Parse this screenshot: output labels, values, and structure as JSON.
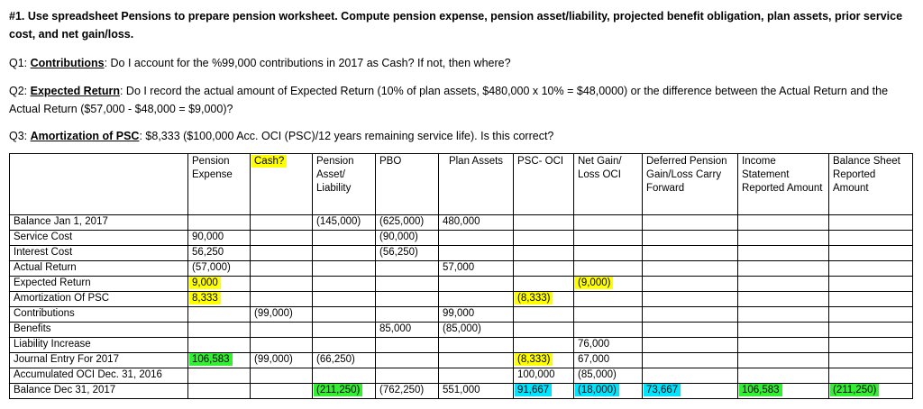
{
  "header": {
    "title": "#1. Use spreadsheet Pensions to prepare pension worksheet.  Compute pension expense, pension asset/liability, projected benefit obligation, plan assets, prior service cost, and net gain/loss."
  },
  "questions": [
    {
      "label": "Q1: ",
      "topic": "Contributions",
      "text": ": Do I account for the %99,000 contributions in 2017 as Cash?  If not, then where?"
    },
    {
      "label": "Q2: ",
      "topic": "Expected Return",
      "text": ": Do I record the actual amount of Expected Return (10% of plan assets, $480,000 x 10% = $48,0000) or the difference between the Actual Return and the Actual Return ($57,000 - $48,000 = $9,000)?"
    },
    {
      "label": "Q3: ",
      "topic": "Amortization of PSC",
      "text": ": $8,333 ($100,000 Acc. OCI (PSC)/12 years remaining service life).  Is this correct?"
    }
  ],
  "worksheet": {
    "columns": [
      "",
      "Pension Expense",
      "Cash?",
      "Pension Asset/ Liability",
      "PBO",
      "Plan Assets",
      "PSC- OCI",
      "Net Gain/ Loss OCI",
      "Deferred Pension Gain/Loss Carry Forward",
      "Income Statement Reported Amount",
      "Balance Sheet Reported Amount"
    ],
    "rows": [
      {
        "label": "Balance Jan 1, 2017",
        "cells": [
          "",
          "",
          "(145,000)",
          "(625,000)",
          "480,000",
          "",
          "",
          "",
          "",
          ""
        ]
      },
      {
        "label": "Service Cost",
        "cells": [
          "90,000",
          "",
          "",
          "(90,000)",
          "",
          "",
          "",
          "",
          "",
          ""
        ]
      },
      {
        "label": "Interest Cost",
        "cells": [
          "56,250",
          "",
          "",
          "(56,250)",
          "",
          "",
          "",
          "",
          "",
          ""
        ]
      },
      {
        "label": "Actual Return",
        "cells": [
          "(57,000)",
          "",
          "",
          "",
          "57,000",
          "",
          "",
          "",
          "",
          ""
        ]
      },
      {
        "label": "Expected Return",
        "cells": [
          "9,000",
          "",
          "",
          "",
          "",
          "",
          "(9,000)",
          "",
          "",
          ""
        ]
      },
      {
        "label": "Amortization Of PSC",
        "cells": [
          "8,333",
          "",
          "",
          "",
          "",
          "(8,333)",
          "",
          "",
          "",
          ""
        ]
      },
      {
        "label": "Contributions",
        "cells": [
          "",
          "(99,000)",
          "",
          "",
          "99,000",
          "",
          "",
          "",
          "",
          ""
        ]
      },
      {
        "label": "Benefits",
        "cells": [
          "",
          "",
          "",
          "85,000",
          "(85,000)",
          "",
          "",
          "",
          "",
          ""
        ]
      },
      {
        "label": "Liability Increase",
        "cells": [
          "",
          "",
          "",
          "",
          "",
          "",
          "76,000",
          "",
          "",
          ""
        ]
      },
      {
        "label": "Journal Entry For 2017",
        "cells": [
          "106,583",
          "(99,000)",
          "(66,250)",
          "",
          "",
          "(8,333)",
          "67,000",
          "",
          "",
          ""
        ]
      },
      {
        "label": "Accumulated OCI Dec. 31, 2016",
        "cells": [
          "",
          "",
          "",
          "",
          "",
          "100,000",
          "(85,000)",
          "",
          "",
          ""
        ]
      },
      {
        "label": "Balance Dec 31, 2017",
        "cells": [
          "",
          "",
          "(211,250)",
          "(762,250)",
          "551,000",
          "91,667",
          "(18,000)",
          "73,667",
          "106,583",
          "(211,250)"
        ]
      }
    ]
  },
  "colors": {
    "yellow": "#ffff00",
    "green": "#33ee33",
    "cyan": "#00e5ff"
  }
}
